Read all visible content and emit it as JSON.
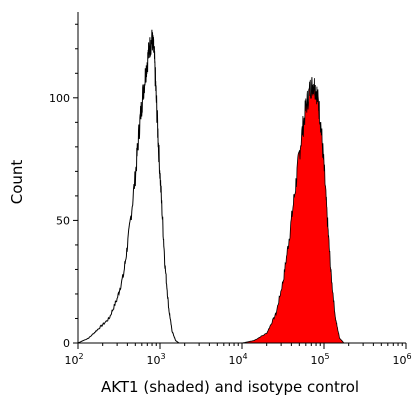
{
  "chart_data": {
    "type": "area",
    "xlabel": "AKT1 (shaded) and isotype control",
    "ylabel": "Count",
    "x_scale": "log",
    "xlim": [
      100,
      1000000
    ],
    "ylim": [
      0,
      135
    ],
    "x_ticks": [
      {
        "value": 100,
        "base": "10",
        "exp": "2"
      },
      {
        "value": 1000,
        "base": "10",
        "exp": "3"
      },
      {
        "value": 10000,
        "base": "10",
        "exp": "4"
      },
      {
        "value": 100000,
        "base": "10",
        "exp": "5"
      },
      {
        "value": 1000000,
        "base": "10",
        "exp": "6"
      }
    ],
    "y_ticks": [
      0,
      50,
      100
    ],
    "grid": false,
    "series": [
      {
        "role": "isotype control (outline)",
        "color": "#000000",
        "fill": "none",
        "points": [
          [
            100,
            0
          ],
          [
            135,
            2
          ],
          [
            180,
            6
          ],
          [
            240,
            10
          ],
          [
            300,
            18
          ],
          [
            360,
            28
          ],
          [
            420,
            45
          ],
          [
            500,
            68
          ],
          [
            560,
            88
          ],
          [
            620,
            102
          ],
          [
            680,
            112
          ],
          [
            740,
            120
          ],
          [
            800,
            124
          ],
          [
            850,
            118
          ],
          [
            900,
            100
          ],
          [
            960,
            80
          ],
          [
            1050,
            56
          ],
          [
            1150,
            32
          ],
          [
            1280,
            14
          ],
          [
            1400,
            5
          ],
          [
            1550,
            1
          ],
          [
            1700,
            0
          ]
        ]
      },
      {
        "role": "AKT1 (shaded)",
        "color": "#000000",
        "fill": "#ff0000",
        "points": [
          [
            10000,
            0
          ],
          [
            14000,
            1
          ],
          [
            20000,
            4
          ],
          [
            26000,
            12
          ],
          [
            32000,
            26
          ],
          [
            38000,
            44
          ],
          [
            45000,
            64
          ],
          [
            52000,
            82
          ],
          [
            60000,
            96
          ],
          [
            68000,
            104
          ],
          [
            75000,
            106
          ],
          [
            82000,
            102
          ],
          [
            90000,
            92
          ],
          [
            100000,
            72
          ],
          [
            110000,
            50
          ],
          [
            122000,
            28
          ],
          [
            138000,
            10
          ],
          [
            155000,
            2
          ],
          [
            175000,
            0
          ]
        ]
      }
    ]
  }
}
